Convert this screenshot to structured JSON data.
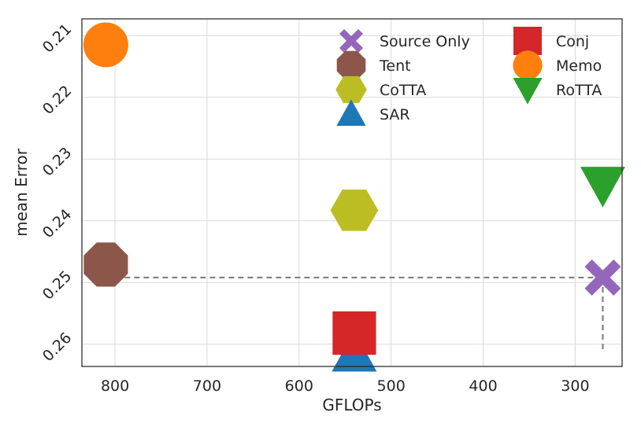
{
  "chart_data": {
    "type": "scatter",
    "xlabel": "GFLOPs",
    "ylabel": "mean Error",
    "x_inverted": true,
    "y_inverted": true,
    "xlim": [
      836,
      249
    ],
    "ylim": [
      0.2073,
      0.2636
    ],
    "xticks": [
      800,
      700,
      600,
      500,
      400,
      300
    ],
    "xtick_labels": [
      "800",
      "700",
      "600",
      "500",
      "400",
      "300"
    ],
    "yticks": [
      0.21,
      0.22,
      0.23,
      0.24,
      0.25,
      0.26
    ],
    "ytick_labels": [
      "0.21",
      "0.22",
      "0.23",
      "0.24",
      "0.25",
      "0.26"
    ],
    "grid": true,
    "legend_position": "top-right",
    "series": [
      {
        "name": "Source Only",
        "x": 270,
        "y": 0.2492,
        "marker": "x",
        "color": "#9467bd"
      },
      {
        "name": "Tent",
        "x": 810,
        "y": 0.2471,
        "marker": "octagon",
        "color": "#8c564b"
      },
      {
        "name": "CoTTA",
        "x": 540,
        "y": 0.2383,
        "marker": "hexagon",
        "color": "#bcbd22"
      },
      {
        "name": "SAR",
        "x": 540,
        "y": 0.2615,
        "marker": "triangle-up",
        "color": "#1f77b4"
      },
      {
        "name": "Conj",
        "x": 540,
        "y": 0.2582,
        "marker": "square",
        "color": "#d62728"
      },
      {
        "name": "Memo",
        "x": 810,
        "y": 0.2115,
        "marker": "circle",
        "color": "#ff7f0e"
      },
      {
        "name": "RoTTA",
        "x": 270,
        "y": 0.2342,
        "marker": "triangle-down",
        "color": "#2ca02c"
      }
    ],
    "reference_lines": [
      {
        "from": [
          810,
          0.2492
        ],
        "to": [
          270,
          0.2492
        ],
        "style": "dashed",
        "color": "#808080"
      },
      {
        "from": [
          270,
          0.2492
        ],
        "to": [
          270,
          0.2612
        ],
        "style": "dashed",
        "color": "#808080"
      }
    ],
    "legend_order": [
      "Source Only",
      "Tent",
      "CoTTA",
      "SAR",
      "Conj",
      "Memo",
      "RoTTA"
    ]
  }
}
